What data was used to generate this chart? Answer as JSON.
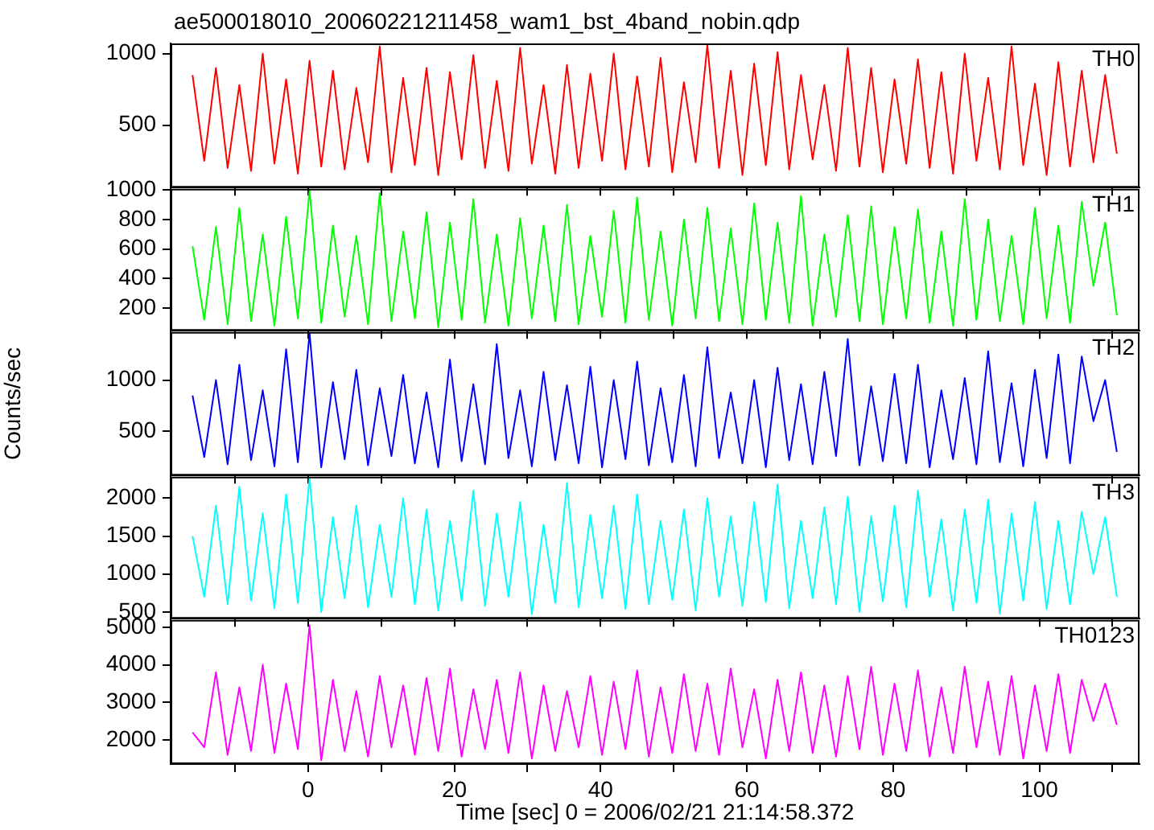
{
  "chart_data": [
    {
      "type": "line",
      "title": "ae500018010_20060221211458_wam1_bst_4band_nobin.qdp",
      "tick_labels": "y",
      "marker": "none",
      "line_style": "solid",
      "x": [
        -15.8,
        -14.2,
        -12.6,
        -11,
        -9.4,
        -7.8,
        -6.2,
        -4.6,
        -3,
        -1.4,
        0.2,
        1.8,
        3.4,
        5,
        6.6,
        8.2,
        9.8,
        11.4,
        13,
        14.6,
        16.2,
        17.8,
        19.4,
        21,
        22.6,
        24.2,
        25.8,
        27.4,
        29,
        30.6,
        32.2,
        33.8,
        35.4,
        37,
        38.6,
        40.2,
        41.8,
        43.4,
        45,
        46.6,
        48.2,
        49.8,
        51.4,
        53,
        54.6,
        56.2,
        57.8,
        59.4,
        61,
        62.6,
        64.2,
        65.8,
        67.4,
        69,
        70.6,
        72.2,
        73.8,
        75.4,
        77,
        78.6,
        80.2,
        81.8,
        83.4,
        85,
        86.6,
        88.2,
        89.8,
        91.4,
        93,
        94.6,
        96.2,
        97.8,
        99.4,
        101,
        102.6,
        104.2,
        105.8,
        107.4,
        109,
        110.6
      ],
      "series": [
        {
          "name": "TH0",
          "color": "#ff0000",
          "values": [
            850,
            250,
            900,
            200,
            780,
            180,
            1000,
            230,
            820,
            160,
            950,
            210,
            880,
            190,
            760,
            240,
            1050,
            170,
            830,
            220,
            900,
            150,
            870,
            260,
            990,
            200,
            810,
            180,
            1040,
            230,
            780,
            160,
            920,
            200,
            860,
            250,
            1000,
            190,
            840,
            210,
            970,
            170,
            800,
            240,
            1060,
            200,
            880,
            150,
            930,
            220,
            1010,
            190,
            850,
            260,
            780,
            180,
            1040,
            210,
            900,
            170,
            820,
            230,
            960,
            200,
            870,
            160,
            1000,
            250,
            830,
            190,
            1050,
            220,
            790,
            150,
            940,
            210,
            880,
            240,
            850,
            300
          ]
        }
      ],
      "xlim": [
        -18.8,
        113.7
      ],
      "ylim": [
        63,
        1071
      ],
      "xticks": [
        {
          "value": -10,
          "label": null
        },
        0,
        {
          "value": 10,
          "label": null
        },
        20,
        {
          "value": 30,
          "label": null
        },
        40,
        {
          "value": 50,
          "label": null
        },
        60,
        {
          "value": 70,
          "label": null
        },
        80,
        {
          "value": 90,
          "label": null
        },
        100,
        {
          "value": 110,
          "label": null
        }
      ],
      "yticks": [
        500,
        1000
      ]
    },
    {
      "type": "line",
      "tick_labels": "y",
      "marker": "none",
      "line_style": "solid",
      "x": [
        -15.8,
        -14.2,
        -12.6,
        -11,
        -9.4,
        -7.8,
        -6.2,
        -4.6,
        -3,
        -1.4,
        0.2,
        1.8,
        3.4,
        5,
        6.6,
        8.2,
        9.8,
        11.4,
        13,
        14.6,
        16.2,
        17.8,
        19.4,
        21,
        22.6,
        24.2,
        25.8,
        27.4,
        29,
        30.6,
        32.2,
        33.8,
        35.4,
        37,
        38.6,
        40.2,
        41.8,
        43.4,
        45,
        46.6,
        48.2,
        49.8,
        51.4,
        53,
        54.6,
        56.2,
        57.8,
        59.4,
        61,
        62.6,
        64.2,
        65.8,
        67.4,
        69,
        70.6,
        72.2,
        73.8,
        75.4,
        77,
        78.6,
        80.2,
        81.8,
        83.4,
        85,
        86.6,
        88.2,
        89.8,
        91.4,
        93,
        94.6,
        96.2,
        97.8,
        99.4,
        101,
        102.6,
        104.2,
        105.8,
        107.4,
        109,
        110.6
      ],
      "series": [
        {
          "name": "TH1",
          "color": "#00ff00",
          "values": [
            620,
            120,
            750,
            90,
            880,
            110,
            700,
            80,
            820,
            130,
            1000,
            100,
            760,
            140,
            690,
            90,
            980,
            110,
            720,
            130,
            850,
            70,
            780,
            120,
            940,
            100,
            700,
            80,
            810,
            130,
            760,
            110,
            900,
            90,
            690,
            140,
            860,
            100,
            950,
            120,
            720,
            80,
            800,
            130,
            880,
            110,
            740,
            90,
            910,
            120,
            780,
            100,
            960,
            80,
            700,
            140,
            830,
            110,
            890,
            90,
            750,
            130,
            870,
            100,
            720,
            80,
            940,
            120,
            800,
            110,
            690,
            90,
            880,
            130,
            760,
            100,
            920,
            350,
            780,
            150
          ]
        }
      ],
      "xlim": [
        -18.8,
        113.7
      ],
      "ylim": [
        46,
        1009
      ],
      "xticks": [
        {
          "value": -10,
          "label": null
        },
        0,
        {
          "value": 10,
          "label": null
        },
        20,
        {
          "value": 30,
          "label": null
        },
        40,
        {
          "value": 50,
          "label": null
        },
        60,
        {
          "value": 70,
          "label": null
        },
        80,
        {
          "value": 90,
          "label": null
        },
        100,
        {
          "value": 110,
          "label": null
        }
      ],
      "yticks": [
        200,
        400,
        600,
        800,
        1000
      ]
    },
    {
      "type": "line",
      "ylabel": "Counts/sec",
      "tick_labels": "y",
      "marker": "none",
      "line_style": "solid",
      "x": [
        -15.8,
        -14.2,
        -12.6,
        -11,
        -9.4,
        -7.8,
        -6.2,
        -4.6,
        -3,
        -1.4,
        0.2,
        1.8,
        3.4,
        5,
        6.6,
        8.2,
        9.8,
        11.4,
        13,
        14.6,
        16.2,
        17.8,
        19.4,
        21,
        22.6,
        24.2,
        25.8,
        27.4,
        29,
        30.6,
        32.2,
        33.8,
        35.4,
        37,
        38.6,
        40.2,
        41.8,
        43.4,
        45,
        46.6,
        48.2,
        49.8,
        51.4,
        53,
        54.6,
        56.2,
        57.8,
        59.4,
        61,
        62.6,
        64.2,
        65.8,
        67.4,
        69,
        70.6,
        72.2,
        73.8,
        75.4,
        77,
        78.6,
        80.2,
        81.8,
        83.4,
        85,
        86.6,
        88.2,
        89.8,
        91.4,
        93,
        94.6,
        96.2,
        97.8,
        99.4,
        101,
        102.6,
        104.2,
        105.8,
        107.4,
        109,
        110.6
      ],
      "series": [
        {
          "name": "TH2",
          "color": "#0000ff",
          "values": [
            850,
            250,
            1000,
            180,
            1150,
            220,
            900,
            160,
            1300,
            200,
            1460,
            150,
            980,
            230,
            1100,
            170,
            920,
            260,
            1050,
            190,
            880,
            150,
            1200,
            210,
            960,
            180,
            1350,
            240,
            900,
            160,
            1080,
            220,
            950,
            190,
            1130,
            150,
            1000,
            230,
            1180,
            170,
            920,
            200,
            1050,
            160,
            1320,
            240,
            880,
            190,
            1000,
            150,
            1120,
            220,
            960,
            180,
            1080,
            260,
            1400,
            170,
            940,
            210,
            1060,
            190,
            1150,
            150,
            900,
            230,
            1020,
            180,
            1280,
            200,
            970,
            160,
            1100,
            240,
            1250,
            190,
            1230,
            600,
            1000,
            300
          ]
        }
      ],
      "xlim": [
        -18.8,
        113.7
      ],
      "ylim": [
        71,
        1468
      ],
      "xticks": [
        {
          "value": -10,
          "label": null
        },
        0,
        {
          "value": 10,
          "label": null
        },
        20,
        {
          "value": 30,
          "label": null
        },
        40,
        {
          "value": 50,
          "label": null
        },
        60,
        {
          "value": 70,
          "label": null
        },
        80,
        {
          "value": 90,
          "label": null
        },
        100,
        {
          "value": 110,
          "label": null
        }
      ],
      "yticks": [
        500,
        1000
      ]
    },
    {
      "type": "line",
      "tick_labels": "y",
      "marker": "none",
      "line_style": "solid",
      "x": [
        -15.8,
        -14.2,
        -12.6,
        -11,
        -9.4,
        -7.8,
        -6.2,
        -4.6,
        -3,
        -1.4,
        0.2,
        1.8,
        3.4,
        5,
        6.6,
        8.2,
        9.8,
        11.4,
        13,
        14.6,
        16.2,
        17.8,
        19.4,
        21,
        22.6,
        24.2,
        25.8,
        27.4,
        29,
        30.6,
        32.2,
        33.8,
        35.4,
        37,
        38.6,
        40.2,
        41.8,
        43.4,
        45,
        46.6,
        48.2,
        49.8,
        51.4,
        53,
        54.6,
        56.2,
        57.8,
        59.4,
        61,
        62.6,
        64.2,
        65.8,
        67.4,
        69,
        70.6,
        72.2,
        73.8,
        75.4,
        77,
        78.6,
        80.2,
        81.8,
        83.4,
        85,
        86.6,
        88.2,
        89.8,
        91.4,
        93,
        94.6,
        96.2,
        97.8,
        99.4,
        101,
        102.6,
        104.2,
        105.8,
        107.4,
        109,
        110.6
      ],
      "series": [
        {
          "name": "TH3",
          "color": "#00ffff",
          "values": [
            1500,
            700,
            1900,
            600,
            2150,
            650,
            1800,
            550,
            2050,
            620,
            2270,
            500,
            1750,
            680,
            1900,
            560,
            1650,
            700,
            2000,
            600,
            1850,
            520,
            1700,
            650,
            2100,
            580,
            1800,
            700,
            1950,
            470,
            1650,
            620,
            2200,
            560,
            1780,
            680,
            1900,
            540,
            2050,
            600,
            1700,
            660,
            1850,
            520,
            2000,
            700,
            1760,
            580,
            1950,
            630,
            2180,
            550,
            1700,
            680,
            1880,
            600,
            2020,
            500,
            1760,
            640,
            1900,
            560,
            2100,
            700,
            1720,
            520,
            1850,
            620,
            1980,
            480,
            1800,
            650,
            1950,
            540,
            1700,
            600,
            1820,
            1000,
            1750,
            700
          ]
        }
      ],
      "xlim": [
        -18.8,
        113.7
      ],
      "ylim": [
        412,
        2282
      ],
      "xticks": [
        {
          "value": -10,
          "label": null
        },
        0,
        {
          "value": 10,
          "label": null
        },
        20,
        {
          "value": 30,
          "label": null
        },
        40,
        {
          "value": 50,
          "label": null
        },
        60,
        {
          "value": 70,
          "label": null
        },
        80,
        {
          "value": 90,
          "label": null
        },
        100,
        {
          "value": 110,
          "label": null
        }
      ],
      "yticks": [
        500,
        1000,
        1500,
        2000
      ]
    },
    {
      "type": "line",
      "xlabel": "Time [sec] 0 = 2006/02/21 21:14:58.372",
      "marker": "none",
      "line_style": "solid",
      "x": [
        -15.8,
        -14.2,
        -12.6,
        -11,
        -9.4,
        -7.8,
        -6.2,
        -4.6,
        -3,
        -1.4,
        0.2,
        1.8,
        3.4,
        5,
        6.6,
        8.2,
        9.8,
        11.4,
        13,
        14.6,
        16.2,
        17.8,
        19.4,
        21,
        22.6,
        24.2,
        25.8,
        27.4,
        29,
        30.6,
        32.2,
        33.8,
        35.4,
        37,
        38.6,
        40.2,
        41.8,
        43.4,
        45,
        46.6,
        48.2,
        49.8,
        51.4,
        53,
        54.6,
        56.2,
        57.8,
        59.4,
        61,
        62.6,
        64.2,
        65.8,
        67.4,
        69,
        70.6,
        72.2,
        73.8,
        75.4,
        77,
        78.6,
        80.2,
        81.8,
        83.4,
        85,
        86.6,
        88.2,
        89.8,
        91.4,
        93,
        94.6,
        96.2,
        97.8,
        99.4,
        101,
        102.6,
        104.2,
        105.8,
        107.4,
        109,
        110.6
      ],
      "series": [
        {
          "name": "TH0123",
          "color": "#ff00ff",
          "values": [
            2200,
            1800,
            3800,
            1600,
            3400,
            1700,
            4000,
            1650,
            3500,
            1750,
            5050,
            1450,
            3600,
            1700,
            3300,
            1550,
            3700,
            1800,
            3450,
            1600,
            3650,
            1700,
            3900,
            1550,
            3350,
            1750,
            3600,
            1650,
            3800,
            1500,
            3450,
            1700,
            3300,
            1800,
            3700,
            1600,
            3550,
            1750,
            3850,
            1550,
            3400,
            1650,
            3750,
            1700,
            3500,
            1600,
            3900,
            1800,
            3350,
            1500,
            3600,
            1700,
            3800,
            1650,
            3450,
            1550,
            3700,
            1750,
            3950,
            1600,
            3500,
            1700,
            3850,
            1550,
            3400,
            1650,
            3950,
            1800,
            3550,
            1600,
            3700,
            1500,
            3450,
            1700,
            3750,
            1650,
            3600,
            2500,
            3500,
            2400
          ]
        }
      ],
      "xlim": [
        -18.8,
        113.7
      ],
      "ylim": [
        1354,
        5196
      ],
      "xticks": [
        {
          "value": -10,
          "label": null
        },
        0,
        {
          "value": 10,
          "label": null
        },
        20,
        {
          "value": 30,
          "label": null
        },
        40,
        {
          "value": 50,
          "label": null
        },
        60,
        {
          "value": 70,
          "label": null
        },
        80,
        {
          "value": 90,
          "label": null
        },
        100,
        {
          "value": 110,
          "label": null
        }
      ],
      "yticks": [
        2000,
        3000,
        4000,
        5000
      ]
    }
  ]
}
